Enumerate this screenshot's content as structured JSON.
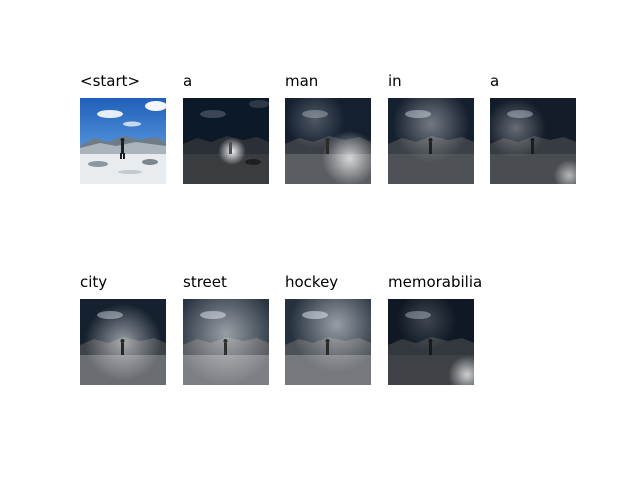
{
  "figure": {
    "frames": [
      {
        "word": "<start>",
        "attention": null
      },
      {
        "word": "a",
        "attention": "center-bright"
      },
      {
        "word": "man",
        "attention": "lower-right"
      },
      {
        "word": "in",
        "attention": "upper-middle"
      },
      {
        "word": "a",
        "attention": "upper-left"
      },
      {
        "word": "city",
        "attention": "center-broad"
      },
      {
        "word": "street",
        "attention": "broad-upper"
      },
      {
        "word": "hockey",
        "attention": "broad-upper-right"
      },
      {
        "word": "memorabilia",
        "attention": "lower-right-corner"
      }
    ]
  }
}
